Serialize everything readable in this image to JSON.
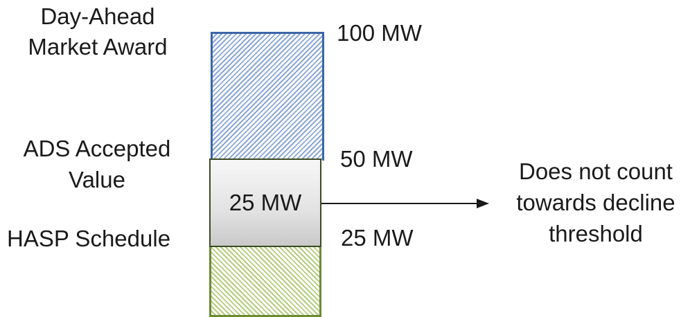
{
  "labels": {
    "day_ahead_line1": "Day-Ahead",
    "day_ahead_line2": "Market Award",
    "ads_line1": "ADS Accepted",
    "ads_line2": "Value",
    "hasp": "HASP Schedule"
  },
  "values": {
    "top": "100 MW",
    "middle": "50 MW",
    "bottom": "25 MW",
    "inner": "25 MW"
  },
  "note": {
    "line1": "Does not count",
    "line2": "towards decline",
    "line3": "threshold"
  },
  "colors": {
    "day_ahead_border": "#3b65a8",
    "day_ahead_hatch": "#8aa6d8",
    "hasp_border": "#6a8a34",
    "hasp_hatch": "#b3cc7c",
    "ads_border": "#3b4a20"
  }
}
